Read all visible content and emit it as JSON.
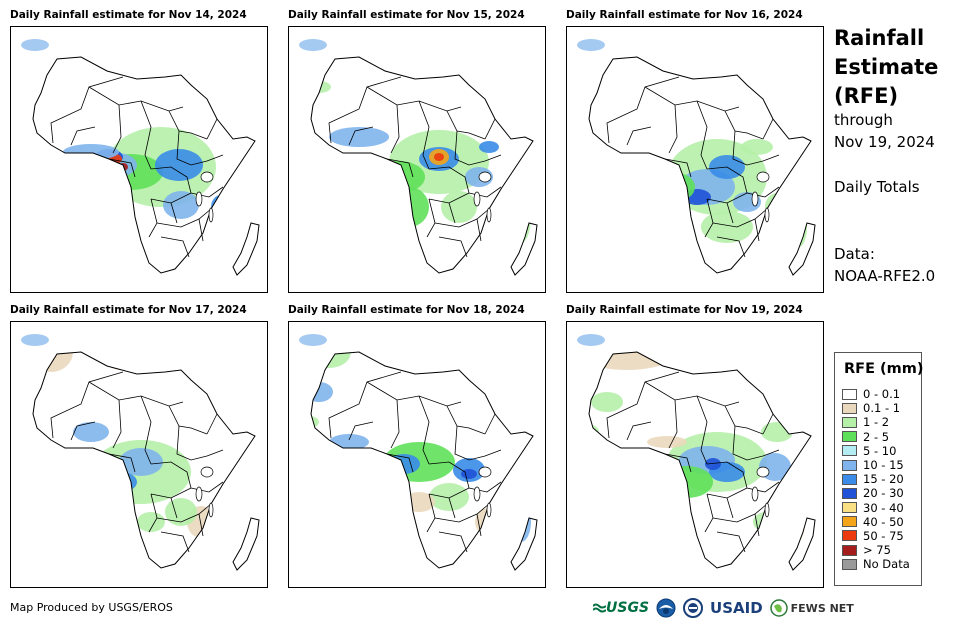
{
  "panels": [
    {
      "title": "Daily Rainfall estimate for Nov 14, 2024",
      "scene": 0
    },
    {
      "title": "Daily Rainfall estimate for Nov 15, 2024",
      "scene": 1
    },
    {
      "title": "Daily Rainfall estimate for Nov 16, 2024",
      "scene": 2
    },
    {
      "title": "Daily Rainfall estimate for Nov 17, 2024",
      "scene": 3
    },
    {
      "title": "Daily Rainfall estimate for Nov 18, 2024",
      "scene": 4
    },
    {
      "title": "Daily Rainfall estimate for Nov 19, 2024",
      "scene": 5
    }
  ],
  "sidebar": {
    "title_line1": "Rainfall",
    "title_line2": "Estimate",
    "title_line3": "(RFE)",
    "through_label": "through",
    "through_date": "Nov 19, 2024",
    "totals_label": "Daily Totals",
    "data_label": "Data:",
    "data_source": "NOAA-RFE2.0"
  },
  "legend": {
    "title": "RFE (mm)",
    "items": [
      {
        "label": "0 - 0.1",
        "color": "#ffffff"
      },
      {
        "label": "0.1 - 1",
        "color": "#ead8bd"
      },
      {
        "label": "1 - 2",
        "color": "#b5f0a8"
      },
      {
        "label": "2 - 5",
        "color": "#5fe05a"
      },
      {
        "label": "5 - 10",
        "color": "#b4ecf4"
      },
      {
        "label": "10 - 15",
        "color": "#7fb4ec"
      },
      {
        "label": "15 - 20",
        "color": "#3a8ce8"
      },
      {
        "label": "20 - 30",
        "color": "#1f52d6"
      },
      {
        "label": "30 - 40",
        "color": "#fae084"
      },
      {
        "label": "40 - 50",
        "color": "#f4a418"
      },
      {
        "label": "50 - 75",
        "color": "#ec3a0e"
      },
      {
        "label": "> 75",
        "color": "#a41c1c"
      },
      {
        "label": "No Data",
        "color": "#9a9a9a"
      }
    ]
  },
  "footer": {
    "credit": "Map Produced by USGS/EROS",
    "logos": [
      {
        "name": "usgs",
        "text": "USGS"
      },
      {
        "name": "noaa",
        "text": ""
      },
      {
        "name": "usaid-seal",
        "text": ""
      },
      {
        "name": "usaid",
        "text": "USAID"
      },
      {
        "name": "fewsnet",
        "text": "FEWS NET"
      }
    ]
  }
}
